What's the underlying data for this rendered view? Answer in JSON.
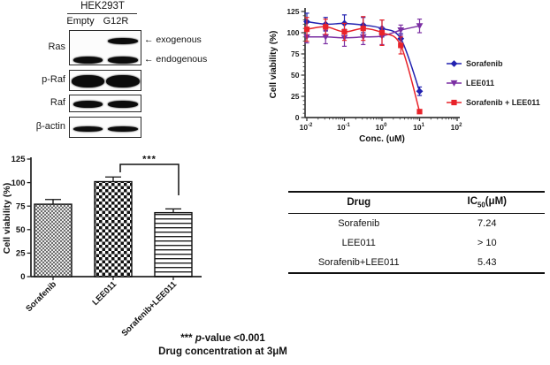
{
  "figure": {
    "blot": {
      "cell_line": "HEK293T",
      "lanes": [
        "Empty",
        "G12R"
      ],
      "rows": [
        {
          "label": "Ras",
          "bands": [
            {
              "name": "exogenous",
              "lanes": [
                false,
                true
              ]
            },
            {
              "name": "endogenous",
              "lanes": [
                true,
                true
              ]
            }
          ]
        },
        {
          "label": "p-Raf",
          "bands": [
            {
              "name": "p-Raf",
              "lanes": [
                true,
                true
              ]
            }
          ]
        },
        {
          "label": "Raf",
          "bands": [
            {
              "name": "Raf",
              "lanes": [
                true,
                true
              ]
            }
          ]
        },
        {
          "label": "β-actin",
          "bands": [
            {
              "name": "β-actin",
              "lanes": [
                true,
                true
              ]
            }
          ]
        }
      ],
      "annotations": [
        {
          "arrow": "←",
          "label": "exogenous"
        },
        {
          "arrow": "←",
          "label": "endogenous"
        }
      ]
    },
    "table": {
      "header": {
        "col1": "Drug",
        "col2_prefix": "IC",
        "col2_sub": "50",
        "col2_suffix": "(μM)"
      },
      "rows": [
        [
          "Sorafenib",
          "7.24"
        ],
        [
          "LEE011",
          "> 10"
        ],
        [
          "Sorafenib+LEE011",
          "5.43"
        ]
      ]
    },
    "footnote": {
      "stars": "***",
      "p": "p",
      "rest": "-value <0.001",
      "line2": "Drug concentration at 3μM"
    }
  },
  "chart_data": [
    {
      "id": "dose-response",
      "type": "line",
      "title": "",
      "xlabel": "Conc. (uM)",
      "ylabel": "Cell viability (%)",
      "xscale": "log",
      "xlim_log": [
        -2,
        2
      ],
      "ylim": [
        0,
        125
      ],
      "yticks": [
        0,
        25,
        50,
        75,
        100,
        125
      ],
      "xticks_log": [
        -2,
        -1,
        0,
        1,
        2
      ],
      "grid": false,
      "legend_position": "right",
      "x": [
        0.01,
        0.0316,
        0.1,
        0.316,
        1,
        3.16,
        10
      ],
      "series": [
        {
          "name": "Sorafenib",
          "color": "#2121b0",
          "marker": "diamond",
          "values": [
            113,
            110,
            111,
            109,
            105,
            93,
            31
          ],
          "errors": [
            10,
            8,
            10,
            9,
            10,
            6,
            5
          ]
        },
        {
          "name": "LEE011",
          "color": "#7b2fa3",
          "marker": "triangle-down",
          "values": [
            95,
            95,
            94,
            95,
            96,
            103,
            108
          ],
          "errors": [
            7,
            8,
            10,
            9,
            10,
            6,
            8
          ]
        },
        {
          "name": "Sorafenib + LEE011",
          "color": "#e8232a",
          "marker": "square",
          "values": [
            104,
            107,
            101,
            105,
            100,
            85,
            7
          ],
          "errors": [
            14,
            9,
            10,
            14,
            15,
            10,
            2
          ]
        }
      ]
    },
    {
      "id": "viability-bars",
      "type": "bar",
      "title": "",
      "xlabel": "",
      "ylabel": "Cell viability (%)",
      "categories": [
        "Sorafenib",
        "LEE011",
        "Sorafenib+LEE011"
      ],
      "values": [
        77,
        101,
        68
      ],
      "errors": [
        5,
        5,
        4
      ],
      "ylim": [
        0,
        125
      ],
      "yticks": [
        0,
        25,
        50,
        75,
        100,
        125
      ],
      "bar_patterns": [
        "fine-check",
        "checkerboard",
        "horizontal-lines"
      ],
      "significance": {
        "label": "***",
        "between": [
          "LEE011",
          "Sorafenib+LEE011"
        ]
      }
    }
  ]
}
